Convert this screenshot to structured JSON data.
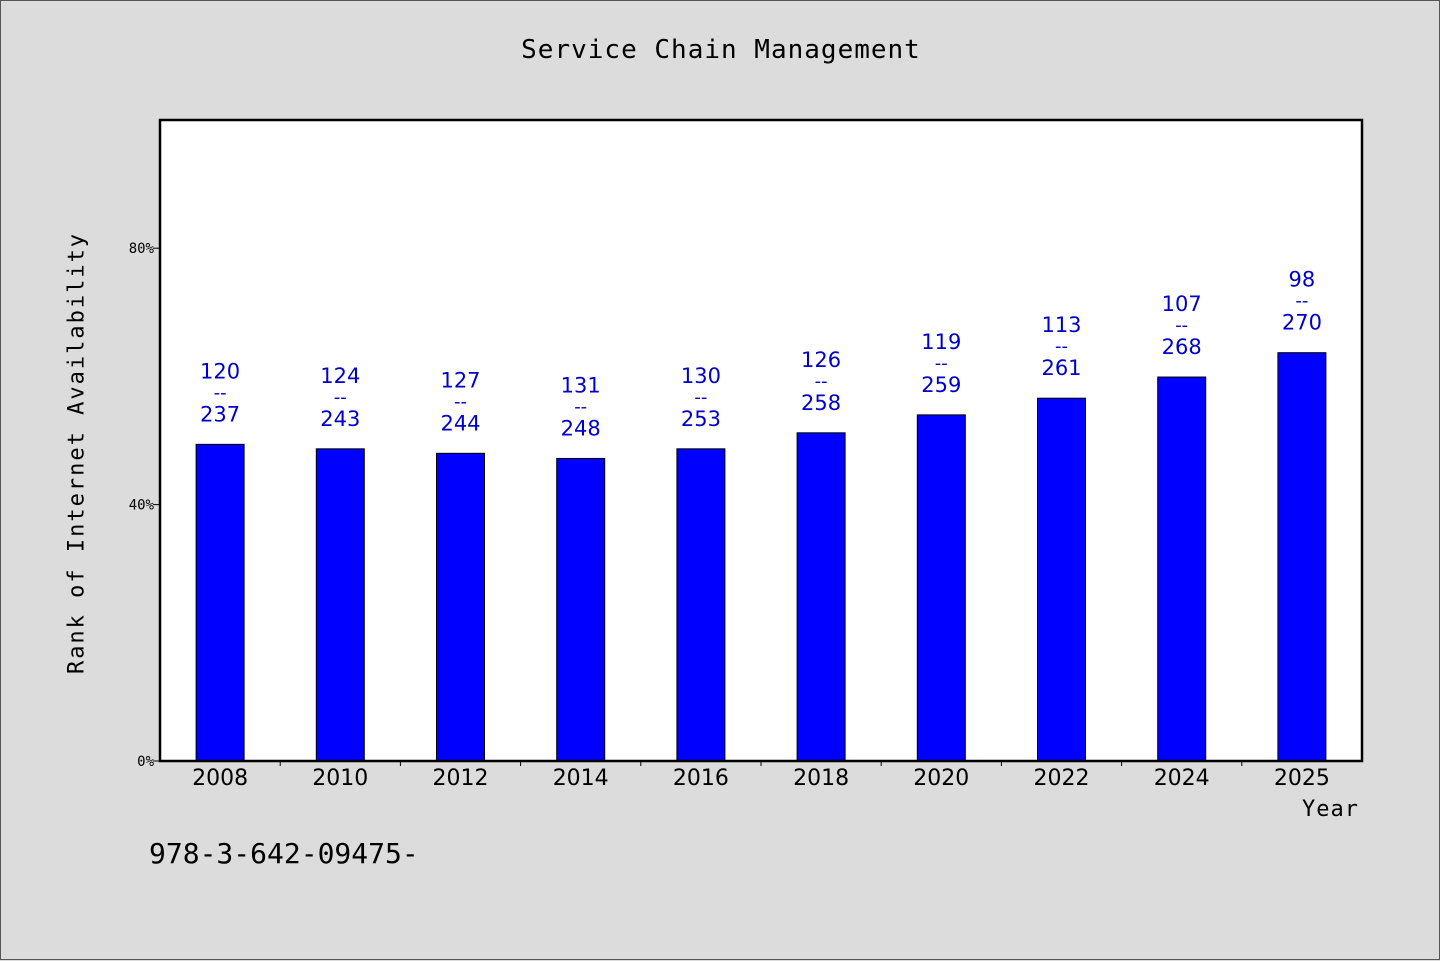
{
  "chart_data": {
    "type": "bar",
    "title": "Service Chain Management",
    "xlabel": "Year",
    "ylabel": "Rank of Internet Availability",
    "ylim": [
      0,
      100
    ],
    "yticks": [
      0,
      40,
      80
    ],
    "ytick_labels": [
      "0%",
      "40%",
      "80%"
    ],
    "grid": false,
    "categories": [
      "2008",
      "2010",
      "2012",
      "2014",
      "2016",
      "2018",
      "2020",
      "2022",
      "2024",
      "2025"
    ],
    "values": [
      49.4,
      48.7,
      48.0,
      47.2,
      48.7,
      51.2,
      54.0,
      56.6,
      59.9,
      63.7
    ],
    "label_top": [
      "120",
      "124",
      "127",
      "131",
      "130",
      "126",
      "119",
      "113",
      "107",
      "98"
    ],
    "label_sep": "--",
    "label_bottom": [
      "237",
      "243",
      "244",
      "248",
      "253",
      "258",
      "259",
      "261",
      "268",
      "270"
    ],
    "colors": {
      "bar": "#0000ff",
      "label": "#0000cc",
      "background": "#dcdcdc",
      "plot": "#ffffff"
    }
  },
  "footnote": "978-3-642-09475-"
}
